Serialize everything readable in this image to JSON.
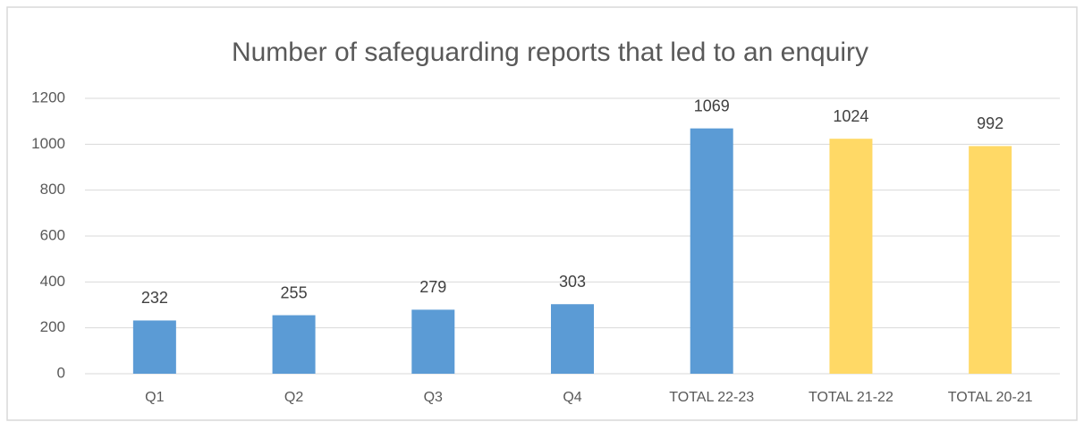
{
  "chart_data": {
    "type": "bar",
    "title": "Number of safeguarding reports that led to an enquiry",
    "categories": [
      "Q1",
      "Q2",
      "Q3",
      "Q4",
      "TOTAL 22-23",
      "TOTAL 21-22",
      "TOTAL 20-21"
    ],
    "values": [
      232,
      255,
      279,
      303,
      1069,
      1024,
      992
    ],
    "colors": [
      "#5b9bd5",
      "#5b9bd5",
      "#5b9bd5",
      "#5b9bd5",
      "#5b9bd5",
      "#ffd966",
      "#ffd966"
    ],
    "ylim": [
      0,
      1200
    ],
    "yticks": [
      0,
      200,
      400,
      600,
      800,
      1000,
      1200
    ],
    "grid": true
  }
}
